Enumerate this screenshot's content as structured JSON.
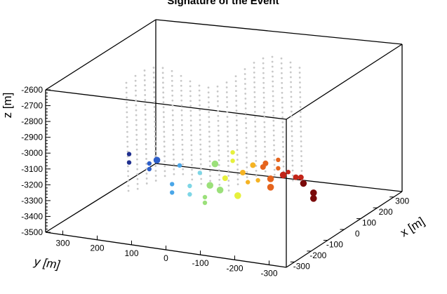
{
  "chart_data": {
    "type": "scatter",
    "title": "Signature of the Event",
    "xlabel": "x [m]",
    "ylabel": "y [m]",
    "zlabel": "z [m]",
    "x_ticks": [
      300,
      200,
      100,
      0,
      -100,
      -200,
      -300
    ],
    "y_ticks": [
      300,
      200,
      100,
      0,
      -100,
      -200,
      -300
    ],
    "z_ticks": [
      -2600,
      -2700,
      -2800,
      -2900,
      -3000,
      -3100,
      -3200,
      -3300,
      -3400,
      -3500
    ],
    "xlim": [
      -350,
      350
    ],
    "ylim": [
      -350,
      350
    ],
    "zlim": [
      -3500,
      -2600
    ],
    "grid": false,
    "color_scale": [
      "#1f2f8f",
      "#2e5fc9",
      "#4aa6e8",
      "#7ed6e6",
      "#9be07a",
      "#e6f03c",
      "#f5b323",
      "#e5641d",
      "#c22418",
      "#7a0a0a"
    ],
    "hits": [
      {
        "x": -260,
        "y": 180,
        "z": -3110
      },
      {
        "x": -260,
        "y": 180,
        "z": -3140
      },
      {
        "x": -180,
        "y": 150,
        "z": -3100
      },
      {
        "x": -180,
        "y": 150,
        "z": -3120
      },
      {
        "x": -150,
        "y": 110,
        "z": -3150
      },
      {
        "x": -90,
        "y": 120,
        "z": -3060
      },
      {
        "x": -90,
        "y": 120,
        "z": -3030
      },
      {
        "x": -60,
        "y": 90,
        "z": -3140
      },
      {
        "x": -20,
        "y": 150,
        "z": -3010
      },
      {
        "x": -20,
        "y": 150,
        "z": -3040
      },
      {
        "x": 20,
        "y": 120,
        "z": -3100
      },
      {
        "x": 40,
        "y": 150,
        "z": -3000
      },
      {
        "x": 40,
        "y": 150,
        "z": -2980
      },
      {
        "x": 60,
        "y": 110,
        "z": -3060
      },
      {
        "x": 80,
        "y": 80,
        "z": -3150
      },
      {
        "x": 100,
        "y": 140,
        "z": -3030
      },
      {
        "x": 120,
        "y": 100,
        "z": -3090
      },
      {
        "x": 150,
        "y": 60,
        "z": -3170
      },
      {
        "x": 150,
        "y": 60,
        "z": -3200
      },
      {
        "x": 170,
        "y": 140,
        "z": -3010
      },
      {
        "x": 190,
        "y": 100,
        "z": -3110
      },
      {
        "x": 210,
        "y": 180,
        "z": -3040
      },
      {
        "x": 230,
        "y": 70,
        "z": -3150
      },
      {
        "x": 250,
        "y": 150,
        "z": -3060
      },
      {
        "x": 270,
        "y": 100,
        "z": -3130
      },
      {
        "x": 280,
        "y": 40,
        "z": -3170
      },
      {
        "x": 300,
        "y": 140,
        "z": -3070
      },
      {
        "x": 300,
        "y": 140,
        "z": -3040
      },
      {
        "x": 330,
        "y": 90,
        "z": -3130
      },
      {
        "x": 330,
        "y": 90,
        "z": -3160
      },
      {
        "x": 350,
        "y": 170,
        "z": -3070
      },
      {
        "x": 370,
        "y": 60,
        "z": -3130
      },
      {
        "x": 400,
        "y": 130,
        "z": -3080
      },
      {
        "x": 420,
        "y": 40,
        "z": -3120
      },
      {
        "x": 430,
        "y": 170,
        "z": -3040
      },
      {
        "x": 470,
        "y": 140,
        "z": -3020
      },
      {
        "x": 470,
        "y": 140,
        "z": -3000
      }
    ]
  }
}
